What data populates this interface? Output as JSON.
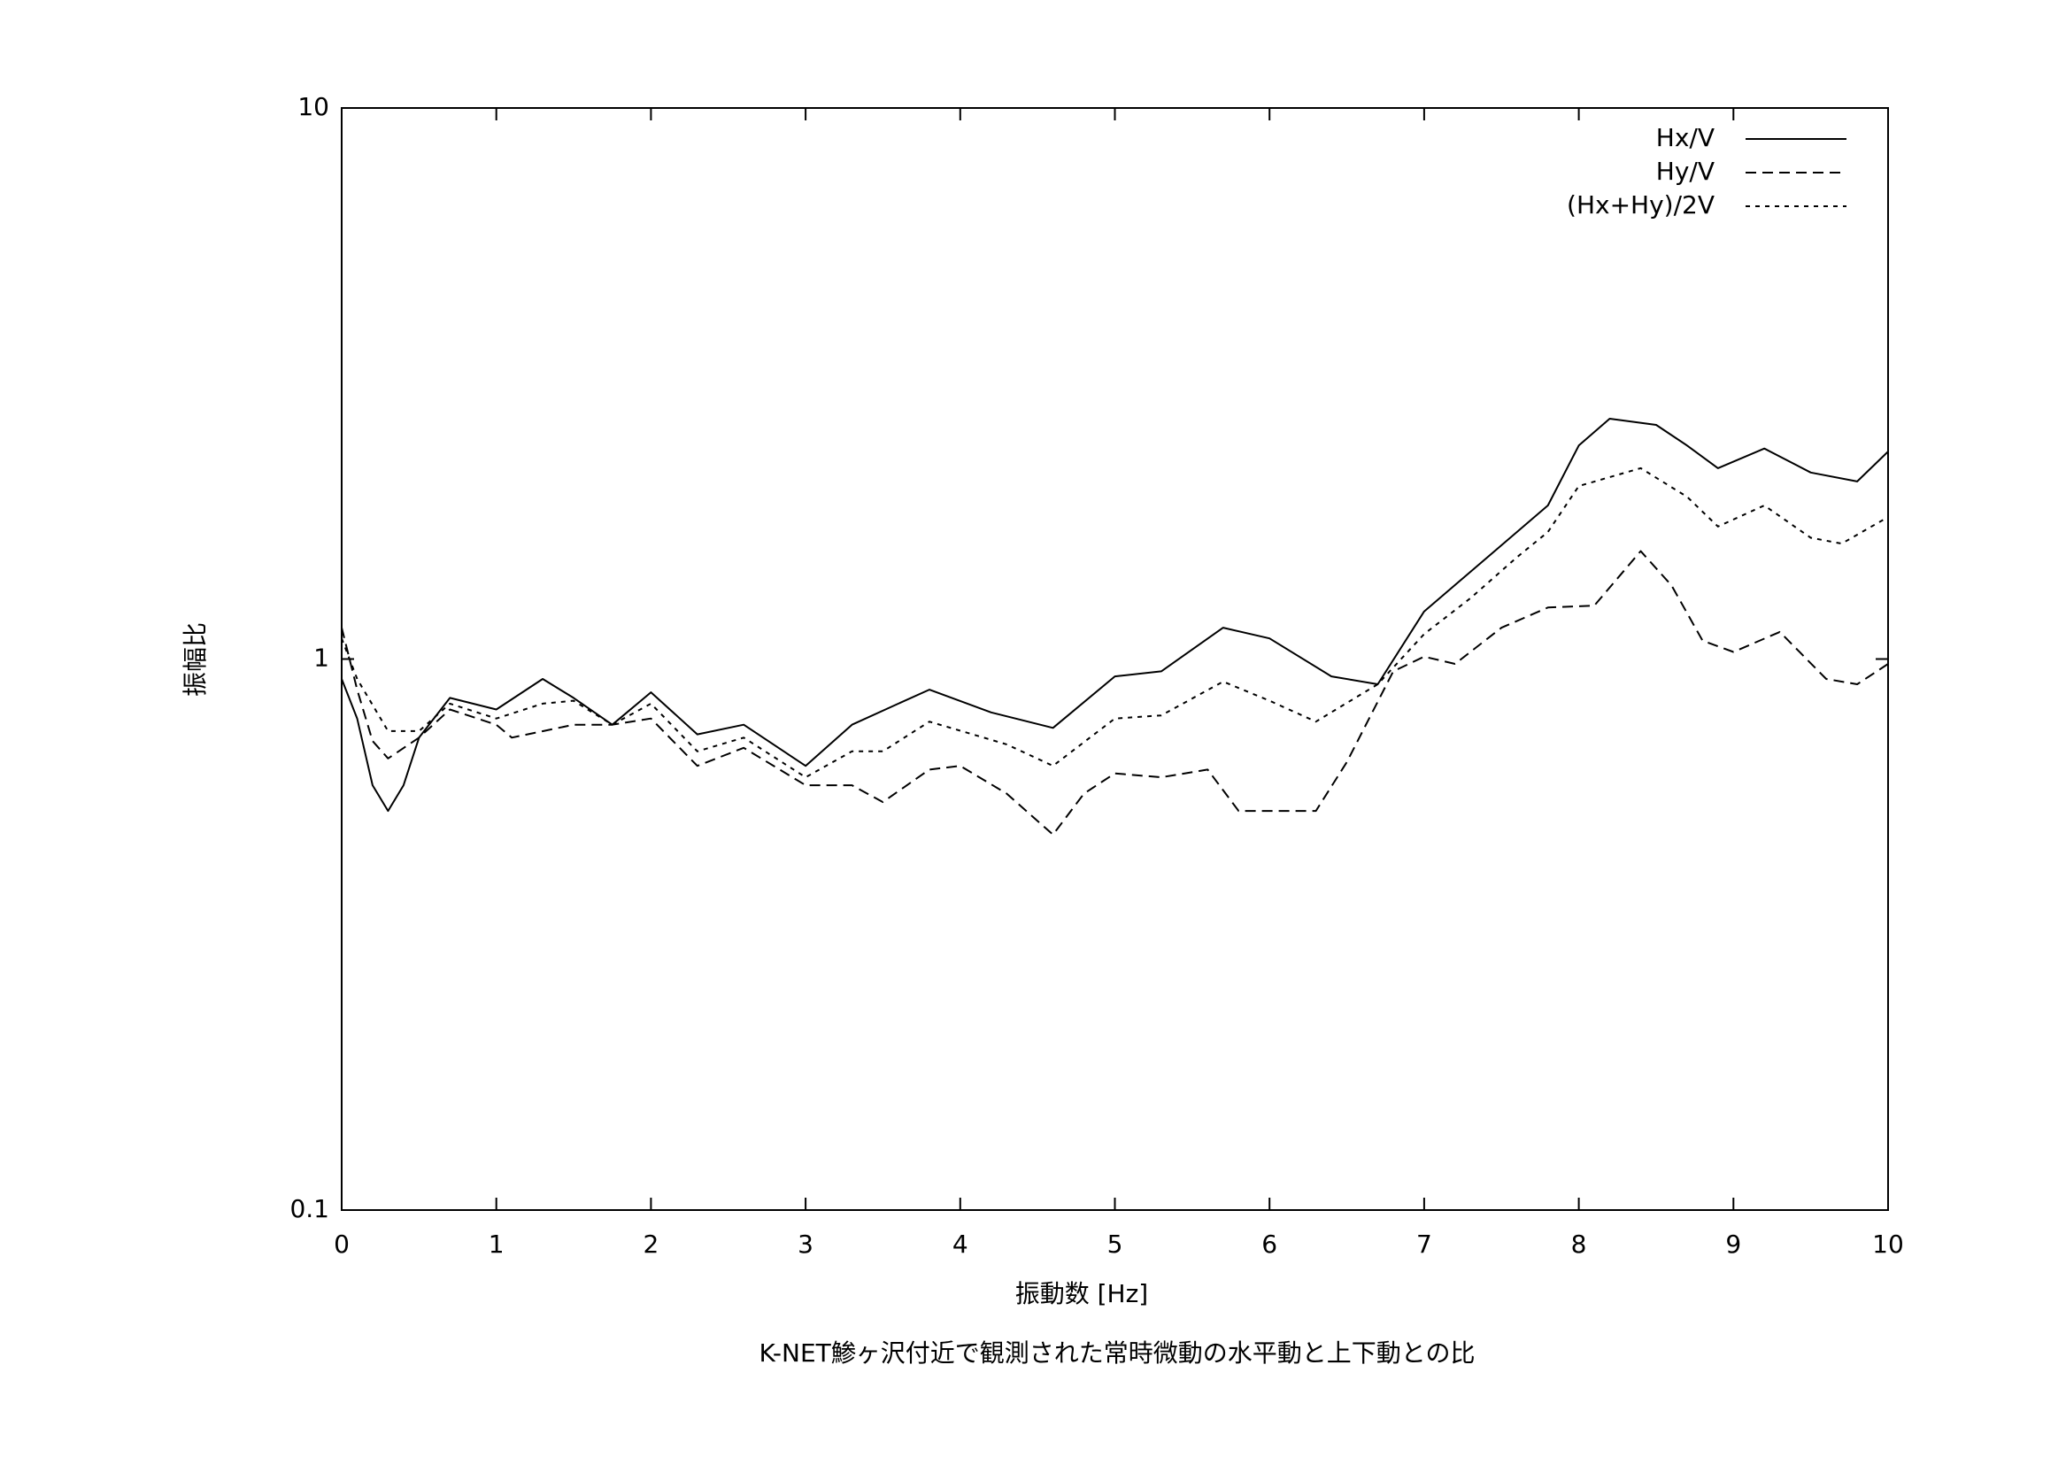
{
  "chart_data": {
    "type": "line",
    "title": "K-NET鯵ヶ沢付近で観測された常時微動の水平動と上下動との比",
    "x_label": "振動数 [Hz]",
    "y_label": "振幅比",
    "xlim": [
      0,
      10
    ],
    "xticks": [
      0,
      1,
      2,
      3,
      4,
      5,
      6,
      7,
      8,
      9,
      10
    ],
    "ylim": [
      0.1,
      10
    ],
    "yticks": [
      0.1,
      1,
      10
    ],
    "y_scale": "log",
    "legend": "top-right",
    "series": [
      {
        "name": "Hx/V",
        "color": "#000000",
        "x": [
          0,
          0.1,
          0.2,
          0.3,
          0.4,
          0.5,
          0.7,
          1.0,
          1.3,
          1.5,
          1.75,
          2.0,
          2.3,
          2.6,
          3.0,
          3.3,
          3.6,
          3.8,
          4.2,
          4.6,
          5.0,
          5.3,
          5.7,
          6.0,
          6.4,
          6.7,
          7.0,
          7.3,
          7.6,
          7.8,
          8.0,
          8.2,
          8.5,
          8.7,
          8.9,
          9.2,
          9.5,
          9.8,
          10
        ],
        "values": [
          0.92,
          0.78,
          0.59,
          0.53,
          0.59,
          0.72,
          0.85,
          0.81,
          0.92,
          0.85,
          0.76,
          0.87,
          0.73,
          0.76,
          0.64,
          0.76,
          0.83,
          0.88,
          0.8,
          0.75,
          0.93,
          0.95,
          1.14,
          1.09,
          0.93,
          0.9,
          1.22,
          1.44,
          1.7,
          1.9,
          2.44,
          2.73,
          2.66,
          2.44,
          2.22,
          2.41,
          2.18,
          2.1,
          2.38
        ]
      },
      {
        "name": "Hy/V",
        "color": "#000000",
        "dash": [
          12,
          7
        ],
        "x": [
          0,
          0.1,
          0.2,
          0.3,
          0.5,
          0.7,
          1.0,
          1.1,
          1.5,
          1.75,
          2.0,
          2.3,
          2.6,
          3.0,
          3.3,
          3.5,
          3.8,
          4.0,
          4.3,
          4.6,
          4.8,
          5.0,
          5.3,
          5.6,
          5.8,
          6.0,
          6.3,
          6.5,
          6.8,
          7.0,
          7.2,
          7.5,
          7.8,
          8.1,
          8.4,
          8.6,
          8.8,
          9.0,
          9.3,
          9.6,
          9.8,
          10
        ],
        "values": [
          1.14,
          0.88,
          0.71,
          0.66,
          0.72,
          0.81,
          0.76,
          0.72,
          0.76,
          0.76,
          0.78,
          0.64,
          0.69,
          0.59,
          0.59,
          0.55,
          0.63,
          0.64,
          0.57,
          0.48,
          0.57,
          0.62,
          0.61,
          0.63,
          0.53,
          0.53,
          0.53,
          0.65,
          0.95,
          1.01,
          0.98,
          1.14,
          1.24,
          1.25,
          1.57,
          1.36,
          1.08,
          1.03,
          1.12,
          0.92,
          0.9,
          0.98
        ]
      },
      {
        "name": "(Hx+Hy)/2V",
        "color": "#000000",
        "dash": [
          5,
          6
        ],
        "x": [
          0,
          0.1,
          0.3,
          0.5,
          0.7,
          1.0,
          1.3,
          1.5,
          1.75,
          2.0,
          2.3,
          2.6,
          3.0,
          3.3,
          3.5,
          3.8,
          4.3,
          4.6,
          5.0,
          5.3,
          5.7,
          6.0,
          6.3,
          6.7,
          7.0,
          7.3,
          7.6,
          7.8,
          8.0,
          8.4,
          8.7,
          8.9,
          9.2,
          9.5,
          9.7,
          10
        ],
        "values": [
          1.09,
          0.92,
          0.74,
          0.74,
          0.83,
          0.78,
          0.83,
          0.84,
          0.76,
          0.83,
          0.68,
          0.72,
          0.61,
          0.68,
          0.68,
          0.77,
          0.7,
          0.64,
          0.78,
          0.79,
          0.91,
          0.84,
          0.77,
          0.9,
          1.11,
          1.29,
          1.53,
          1.7,
          2.06,
          2.22,
          1.97,
          1.74,
          1.9,
          1.66,
          1.62,
          1.81
        ]
      }
    ]
  }
}
